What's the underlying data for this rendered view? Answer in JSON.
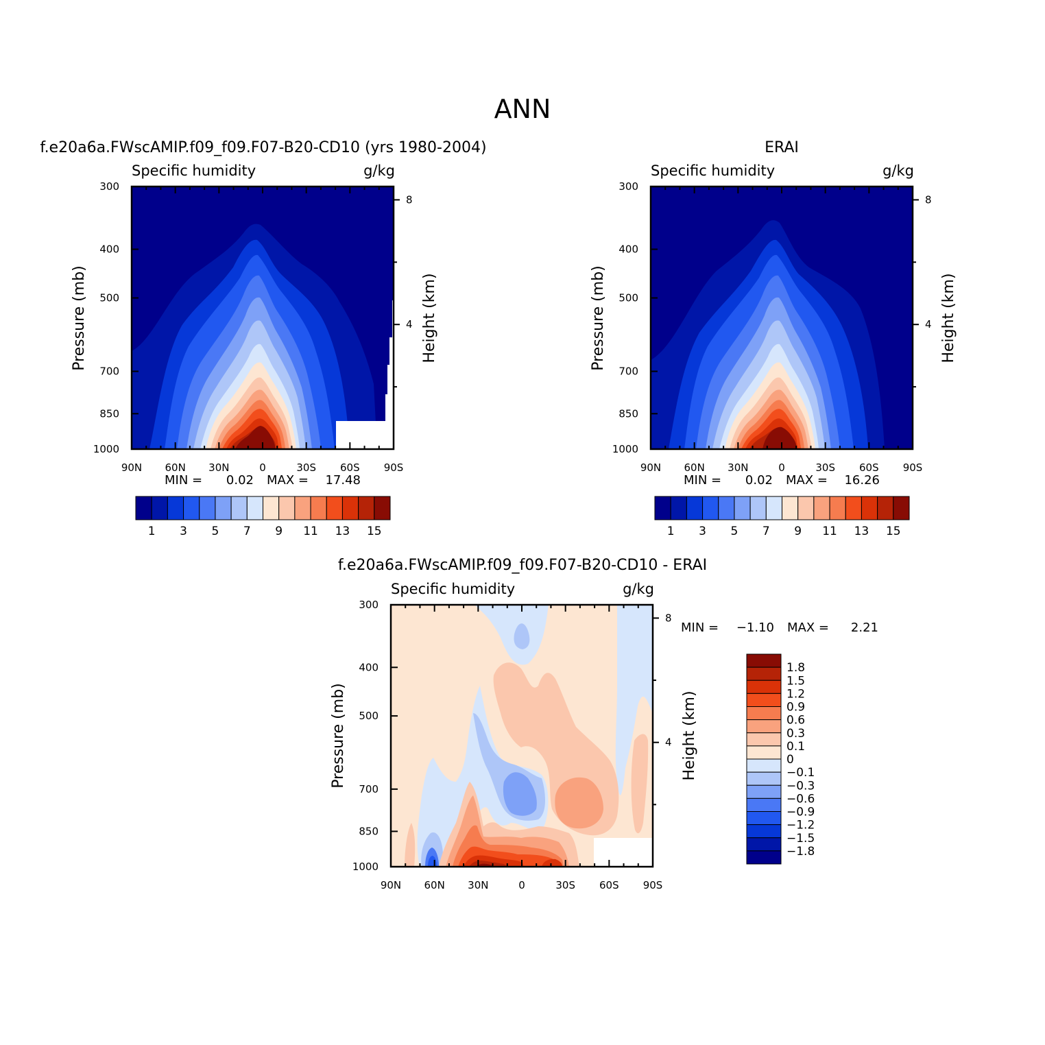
{
  "figure": {
    "title": "ANN"
  },
  "panels": [
    {
      "title": "f.e20a6a.FWscAMIP.f09_f09.F07-B20-CD10 (yrs 1980-2004)",
      "variable": "Specific humidity",
      "units": "g/kg",
      "ylabel": "Pressure (mb)",
      "ylabel_right": "Height (km)",
      "min_label": "MIN =",
      "min_value": "0.02",
      "max_label": "MAX =",
      "max_value": "17.48"
    },
    {
      "title": "ERAI",
      "variable": "Specific humidity",
      "units": "g/kg",
      "ylabel": "Pressure (mb)",
      "ylabel_right": "Height (km)",
      "min_label": "MIN =",
      "min_value": "0.02",
      "max_label": "MAX =",
      "max_value": "16.26"
    },
    {
      "title": "f.e20a6a.FWscAMIP.f09_f09.F07-B20-CD10 - ERAI",
      "variable": "Specific humidity",
      "units": "g/kg",
      "ylabel": "Pressure (mb)",
      "ylabel_right": "Height (km)",
      "min_label": "MIN =",
      "min_value": "-1.10",
      "max_label": "MAX =",
      "max_value": "2.21"
    }
  ],
  "colors": {
    "humidity_scale": [
      "#00008b",
      "#0016a8",
      "#0638d8",
      "#2158f0",
      "#4a78f5",
      "#7ea1f7",
      "#aec6f8",
      "#d6e6fc",
      "#fde6d2",
      "#fbc7ad",
      "#f9a27e",
      "#f67c4f",
      "#f24e1c",
      "#da3208",
      "#b52307",
      "#880c04"
    ],
    "difference_scale": [
      "#00008b",
      "#0016a8",
      "#0638d8",
      "#2158f0",
      "#4a78f5",
      "#7ea1f7",
      "#aec6f8",
      "#d6e6fc",
      "#fde6d2",
      "#fbc7ad",
      "#f9a27e",
      "#f67c4f",
      "#f24e1c",
      "#da3208",
      "#b52307",
      "#880c04"
    ]
  },
  "chart_data": [
    {
      "type": "heatmap",
      "title": "f.e20a6a.FWscAMIP.f09_f09.F07-B20-CD10 (yrs 1980-2004)",
      "subtitle": "Specific humidity",
      "units": "g/kg",
      "xlabel": "",
      "ylabel": "Pressure (mb)",
      "ylabel_right": "Height (km)",
      "x_ticks": [
        "90N",
        "60N",
        "30N",
        "0",
        "30S",
        "60S",
        "90S"
      ],
      "x_range": [
        90,
        -90
      ],
      "y_ticks": [
        300,
        400,
        500,
        700,
        850,
        1000
      ],
      "y_range": [
        300,
        1000
      ],
      "y_scale": "log",
      "y_right_ticks": [
        8,
        4
      ],
      "colorbar_labels": [
        1,
        3,
        5,
        7,
        9,
        11,
        13,
        15
      ],
      "contour_levels": [
        0.5,
        1,
        2,
        3,
        4,
        5,
        6,
        7,
        8,
        9,
        10,
        11,
        12,
        13,
        14,
        15
      ],
      "min": 0.02,
      "max": 17.48,
      "missing_region": "near-surface 55S-90S",
      "colorbar": "horizontal, below"
    },
    {
      "type": "heatmap",
      "title": "ERAI",
      "subtitle": "Specific humidity",
      "units": "g/kg",
      "xlabel": "",
      "ylabel": "Pressure (mb)",
      "ylabel_right": "Height (km)",
      "x_ticks": [
        "90N",
        "60N",
        "30N",
        "0",
        "30S",
        "60S",
        "90S"
      ],
      "x_range": [
        90,
        -90
      ],
      "y_ticks": [
        300,
        400,
        500,
        700,
        850,
        1000
      ],
      "y_range": [
        300,
        1000
      ],
      "y_scale": "log",
      "y_right_ticks": [
        8,
        4
      ],
      "colorbar_labels": [
        1,
        3,
        5,
        7,
        9,
        11,
        13,
        15
      ],
      "contour_levels": [
        0.5,
        1,
        2,
        3,
        4,
        5,
        6,
        7,
        8,
        9,
        10,
        11,
        12,
        13,
        14,
        15
      ],
      "min": 0.02,
      "max": 16.26,
      "colorbar": "horizontal, below"
    },
    {
      "type": "heatmap",
      "title": "f.e20a6a.FWscAMIP.f09_f09.F07-B20-CD10 - ERAI",
      "subtitle": "Specific humidity",
      "units": "g/kg",
      "xlabel": "",
      "ylabel": "Pressure (mb)",
      "ylabel_right": "Height (km)",
      "x_ticks": [
        "90N",
        "60N",
        "30N",
        "0",
        "30S",
        "60S",
        "90S"
      ],
      "x_range": [
        90,
        -90
      ],
      "y_ticks": [
        300,
        400,
        500,
        700,
        850,
        1000
      ],
      "y_range": [
        300,
        1000
      ],
      "y_scale": "log",
      "y_right_ticks": [
        8,
        4
      ],
      "colorbar_labels": [
        "1.8",
        "1.5",
        "1.2",
        "0.9",
        "0.6",
        "0.3",
        "0.1",
        "0",
        "-0.1",
        "-0.3",
        "-0.6",
        "-0.9",
        "-1.2",
        "-1.5",
        "-1.8"
      ],
      "contour_levels": [
        -1.8,
        -1.5,
        -1.2,
        -0.9,
        -0.6,
        -0.3,
        -0.1,
        0,
        0.1,
        0.3,
        0.6,
        0.9,
        1.2,
        1.5,
        1.8
      ],
      "min": -1.1,
      "max": 2.21,
      "missing_region": "near-surface 50S-90S",
      "colorbar": "vertical, right"
    }
  ]
}
